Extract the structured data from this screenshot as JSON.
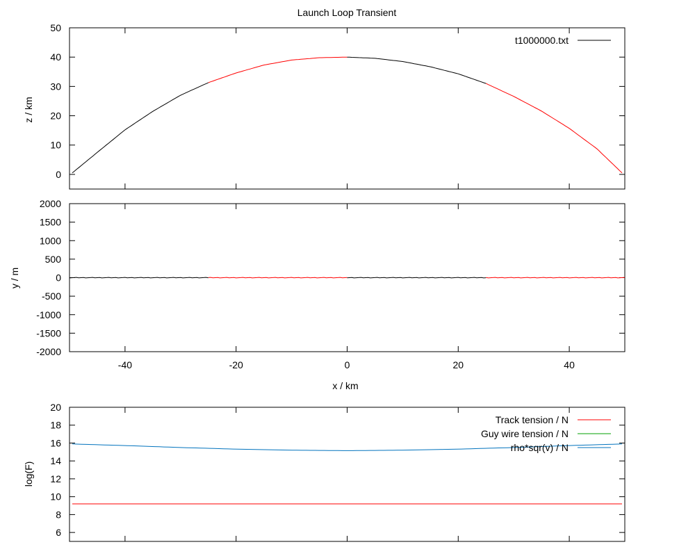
{
  "figure_title": "Launch Loop Transient",
  "chart_data": [
    {
      "type": "line",
      "xlabel": "",
      "ylabel": "z / km",
      "xlim": [
        -50,
        50
      ],
      "ylim": [
        -5,
        50
      ],
      "yticks": [
        0,
        10,
        20,
        30,
        40,
        50
      ],
      "xticks": [],
      "legend": {
        "placement": "top-right",
        "entries": [
          {
            "label": "t1000000.txt",
            "color": "#000000"
          }
        ]
      },
      "segment_colors": [
        "#000000",
        "#ff0000"
      ],
      "color_switch_x": [
        -25,
        0,
        25
      ],
      "series": [
        {
          "name": "t1000000.txt",
          "x": [
            -49.5,
            -45,
            -40,
            -35,
            -30,
            -25,
            -20,
            -15,
            -10,
            -5,
            0,
            5,
            10,
            15,
            20,
            25,
            30,
            35,
            40,
            45,
            49.5
          ],
          "y": [
            0.5,
            7.5,
            15.2,
            21.5,
            27.0,
            31.3,
            34.6,
            37.3,
            39.0,
            39.8,
            40.0,
            39.6,
            38.5,
            36.7,
            34.3,
            31.0,
            26.6,
            21.6,
            15.7,
            8.7,
            0.5
          ]
        }
      ]
    },
    {
      "type": "line",
      "xlabel": "x / km",
      "ylabel": "y / m",
      "xlim": [
        -50,
        50
      ],
      "ylim": [
        -2000,
        2000
      ],
      "yticks": [
        -2000,
        -1500,
        -1000,
        -500,
        0,
        500,
        1000,
        1500,
        2000
      ],
      "xticks": [
        -40,
        -20,
        0,
        20,
        40
      ],
      "segment_colors": [
        "#000000",
        "#ff0000"
      ],
      "color_switch_x": [
        -25,
        0,
        25
      ],
      "series": [
        {
          "name": "t1000000.txt",
          "x": [
            -50,
            -40,
            -30,
            -20,
            -10,
            0,
            10,
            20,
            30,
            40,
            50
          ],
          "y": [
            0,
            0,
            0,
            0,
            0,
            0,
            0,
            0,
            0,
            0,
            0
          ]
        }
      ]
    },
    {
      "type": "line",
      "xlabel": "",
      "ylabel": "log(F)",
      "xlim": [
        -50,
        50
      ],
      "ylim": [
        5,
        20
      ],
      "yticks": [
        6,
        8,
        10,
        12,
        14,
        16,
        18,
        20
      ],
      "xticks": [],
      "legend": {
        "placement": "top-right"
      },
      "series": [
        {
          "name": "Track tension / N",
          "color": "#ff0000",
          "x": [
            -49.5,
            -25,
            0,
            25,
            49.5
          ],
          "y": [
            9.2,
            9.2,
            9.2,
            9.2,
            9.2
          ]
        },
        {
          "name": "Guy wire tension / N",
          "color": "#00a000",
          "x": [],
          "y": []
        },
        {
          "name": "rho*sqr(v) / N",
          "color": "#0072bd",
          "x": [
            -49.5,
            -40,
            -30,
            -20,
            -10,
            0,
            10,
            20,
            30,
            40,
            49.5
          ],
          "y": [
            15.9,
            15.72,
            15.5,
            15.32,
            15.2,
            15.15,
            15.2,
            15.32,
            15.5,
            15.72,
            15.9
          ]
        }
      ]
    }
  ]
}
